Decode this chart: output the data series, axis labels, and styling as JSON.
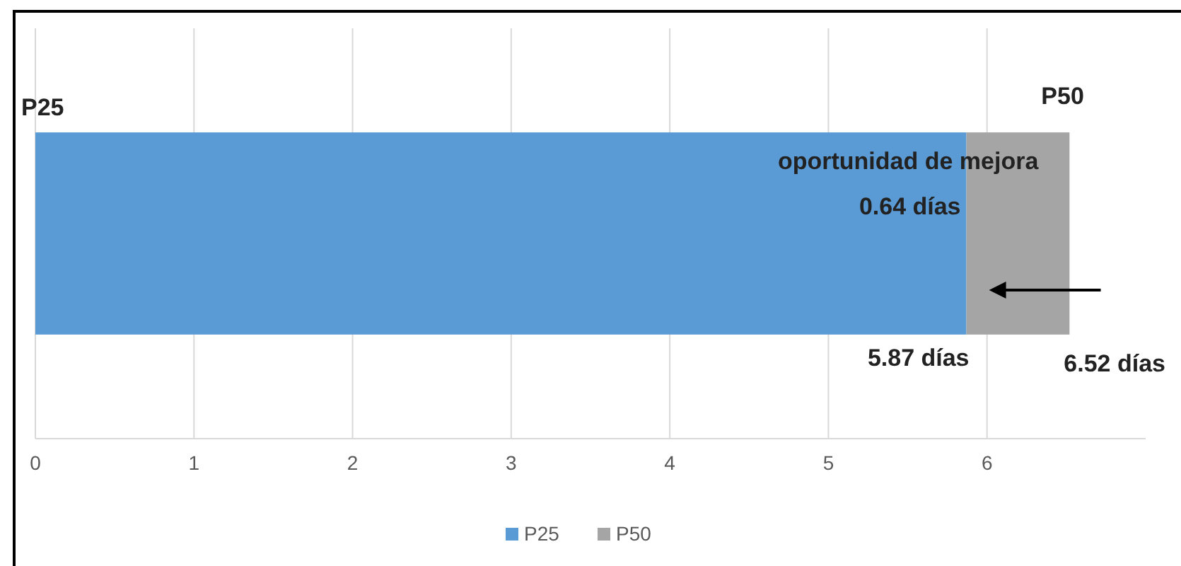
{
  "chart_data": {
    "type": "bar",
    "orientation": "horizontal",
    "stacked": true,
    "categories": [
      null
    ],
    "series": [
      {
        "name": "P25",
        "color": "#5b9bd5",
        "values": [
          5.87
        ]
      },
      {
        "name": "P50",
        "color": "#a5a5a5",
        "values": [
          0.65
        ]
      }
    ],
    "xlim": [
      0,
      7
    ],
    "xticks": [
      0,
      1,
      2,
      3,
      4,
      5,
      6
    ],
    "grid": "x",
    "legend": "bottom",
    "annotations": [
      "P25",
      "P50",
      "oportunidad de mejora",
      "0.64 días",
      "5.87 días",
      "6.52 días"
    ]
  }
}
